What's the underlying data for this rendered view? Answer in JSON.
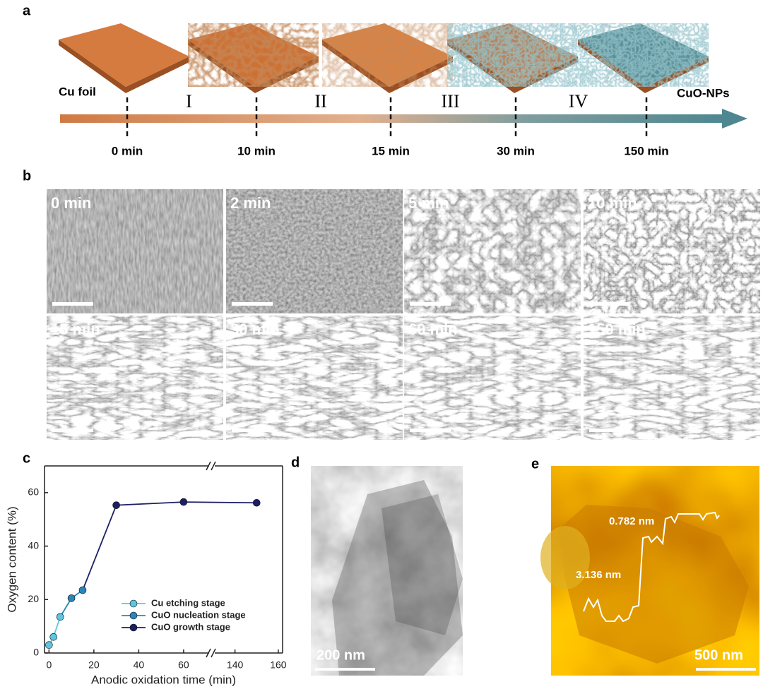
{
  "panel_a": {
    "label": "a",
    "start": "Cu foil",
    "end": "CuO-NPs",
    "stages": [
      "I",
      "II",
      "III",
      "IV"
    ],
    "times": [
      "0 min",
      "10 min",
      "15 min",
      "30 min",
      "150 min"
    ]
  },
  "panel_b": {
    "label": "b",
    "images": [
      "0 min",
      "2 min",
      "5 min",
      "10 min",
      "15 min",
      "30 min",
      "60 min",
      "150 min"
    ]
  },
  "chart_data": {
    "type": "line",
    "panel_label": "c",
    "x_label": "Anodic oxidation time (min)",
    "y_label": "Oxygen content (%)",
    "xlim": [
      -2,
      162
    ],
    "xbreak": [
      72,
      130
    ],
    "ylim": [
      0,
      70
    ],
    "xticks": [
      0,
      20,
      40,
      60,
      140,
      160
    ],
    "yticks": [
      0,
      20,
      40,
      60
    ],
    "legend": "lower right",
    "series": [
      {
        "name": "Cu etching stage",
        "color": "#5cc6e0",
        "x": [
          0,
          2,
          5
        ],
        "values": [
          3,
          6,
          13.5
        ]
      },
      {
        "name": "CuO nucleation stage",
        "color": "#2a86b8",
        "x": [
          10,
          15
        ],
        "values": [
          20.5,
          23.5
        ]
      },
      {
        "name": "CuO growth stage",
        "color": "#1b1f66",
        "x": [
          30,
          60,
          150
        ],
        "values": [
          55.3,
          56.5,
          56.2
        ]
      }
    ]
  },
  "panel_d": {
    "label": "d",
    "scale_bar": "200 nm"
  },
  "panel_e": {
    "label": "e",
    "scale_bar": "500 nm",
    "annotations": [
      "0.782 nm",
      "3.136 nm"
    ]
  }
}
